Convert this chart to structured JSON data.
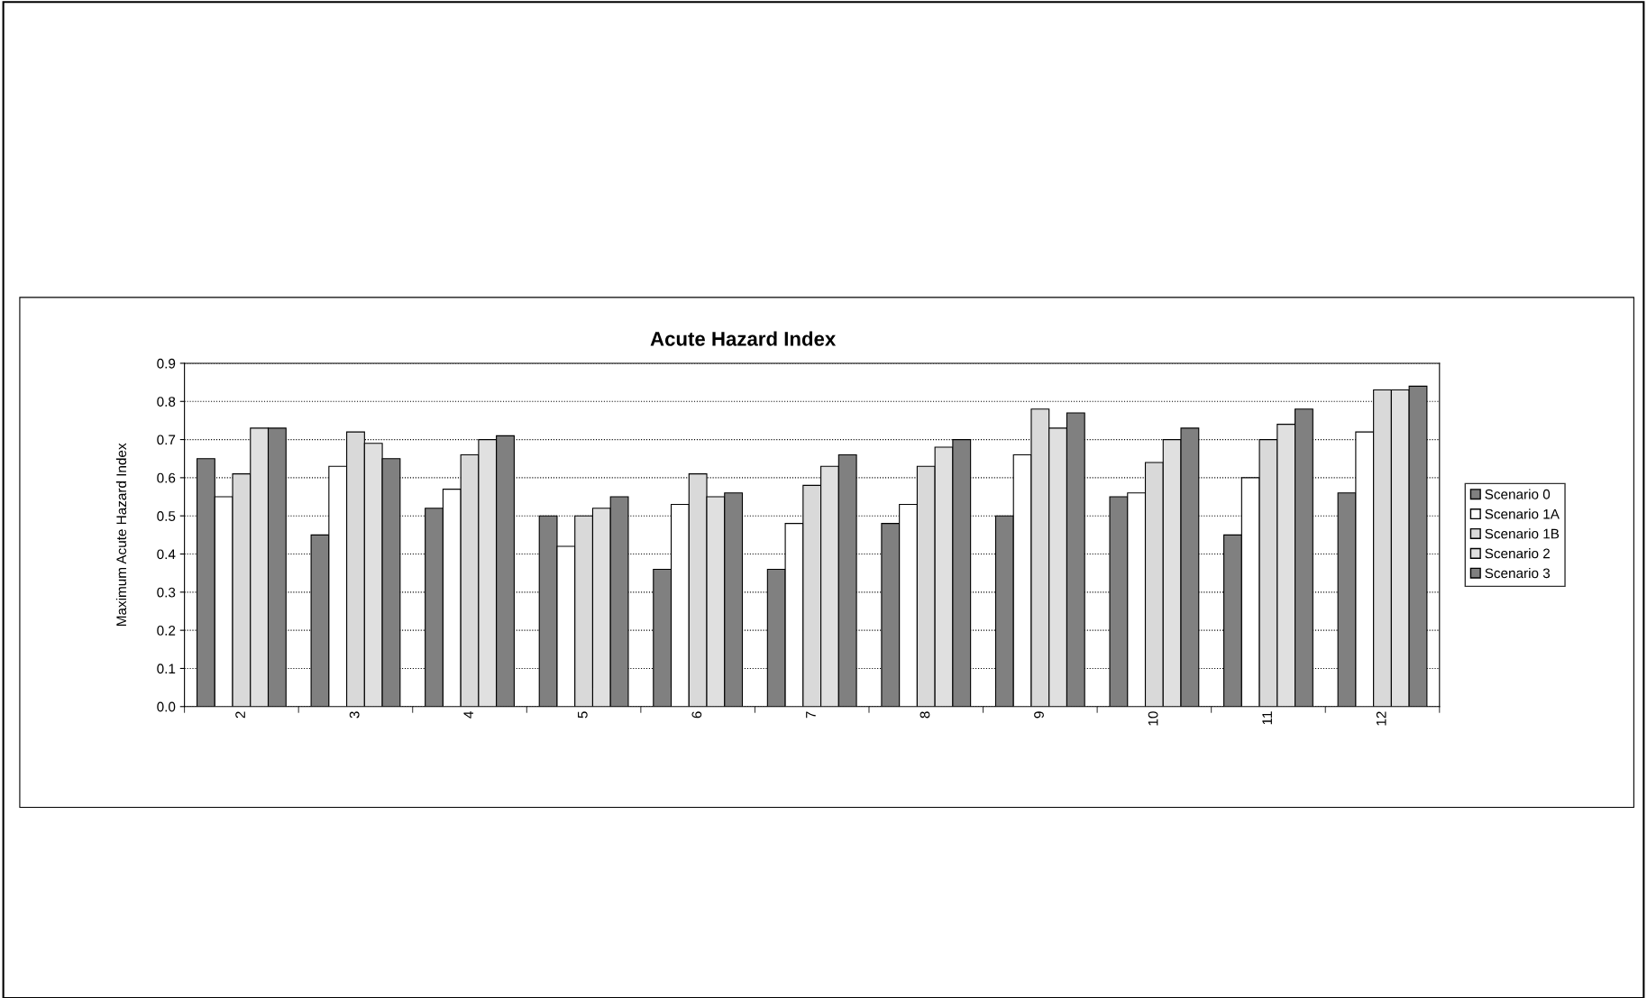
{
  "chart_data": {
    "type": "bar",
    "title": "Acute Hazard Index",
    "ylabel": "Maximum Acute Hazard Index",
    "categories": [
      "2",
      "3",
      "4",
      "5",
      "6",
      "7",
      "8",
      "9",
      "10",
      "11",
      "12"
    ],
    "series": [
      {
        "name": "Scenario 0",
        "color": "#808080",
        "values": [
          0.65,
          0.45,
          0.52,
          0.5,
          0.36,
          0.36,
          0.48,
          0.5,
          0.55,
          0.45,
          0.56
        ]
      },
      {
        "name": "Scenario 1A",
        "color": "#ffffff",
        "values": [
          0.55,
          0.63,
          0.57,
          0.42,
          0.53,
          0.48,
          0.53,
          0.66,
          0.56,
          0.6,
          0.72
        ]
      },
      {
        "name": "Scenario 1B",
        "color": "#d9d9d9",
        "values": [
          0.61,
          0.72,
          0.66,
          0.5,
          0.61,
          0.58,
          0.63,
          0.78,
          0.64,
          0.7,
          0.83
        ]
      },
      {
        "name": "Scenario 2",
        "color": "#e0e0e0",
        "values": [
          0.73,
          0.69,
          0.7,
          0.52,
          0.55,
          0.63,
          0.68,
          0.73,
          0.7,
          0.74,
          0.83
        ]
      },
      {
        "name": "Scenario 3",
        "color": "#808080",
        "values": [
          0.73,
          0.65,
          0.71,
          0.55,
          0.56,
          0.66,
          0.7,
          0.77,
          0.73,
          0.78,
          0.84
        ]
      }
    ],
    "ylim": [
      0,
      0.9
    ],
    "yticks": [
      {
        "value": 0,
        "label": "0.0"
      },
      {
        "value": 0.1,
        "label": "0.1"
      },
      {
        "value": 0.2,
        "label": "0.2"
      },
      {
        "value": 0.3,
        "label": "0.3"
      },
      {
        "value": 0.4,
        "label": "0.4"
      },
      {
        "value": 0.5,
        "label": "0.5"
      },
      {
        "value": 0.6,
        "label": "0.6"
      },
      {
        "value": 0.7,
        "label": "0.7"
      },
      {
        "value": 0.8,
        "label": "0.8"
      },
      {
        "value": 0.9,
        "label": "0.9"
      }
    ],
    "grid": "y",
    "legend": "right"
  }
}
